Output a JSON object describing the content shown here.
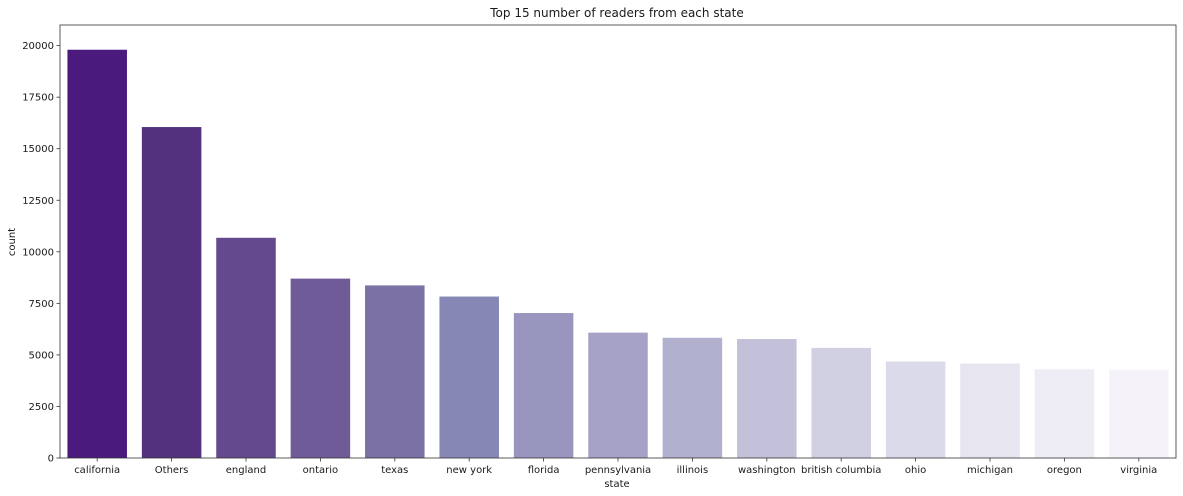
{
  "chart_data": {
    "type": "bar",
    "title": "Top 15 number of readers from each state",
    "xlabel": "state",
    "ylabel": "count",
    "ylim": [
      0,
      21000
    ],
    "yticks": [
      0,
      2500,
      5000,
      7500,
      10000,
      12500,
      15000,
      17500,
      20000
    ],
    "ytick_labels": [
      "0",
      "2500",
      "5000",
      "7500",
      "10000",
      "12500",
      "15000",
      "17500",
      "20000"
    ],
    "grid": false,
    "categories": [
      "california",
      "Others",
      "england",
      "ontario",
      "texas",
      "new york",
      "florida",
      "pennsylvania",
      "illinois",
      "washington",
      "british columbia",
      "ohio",
      "michigan",
      "oregon",
      "virginia"
    ],
    "values": [
      19800,
      16050,
      10680,
      8700,
      8370,
      7830,
      7030,
      6080,
      5830,
      5770,
      5340,
      4680,
      4580,
      4300,
      4280
    ],
    "colors": [
      "#4a1a7d",
      "#53317f",
      "#64498f",
      "#705b99",
      "#7b71a5",
      "#8787b5",
      "#9895be",
      "#a6a1c7",
      "#b1b0cf",
      "#c2c1d9",
      "#d1cfe2",
      "#dbdaea",
      "#e6e5f0",
      "#eeecf4",
      "#f5f3f9"
    ]
  }
}
